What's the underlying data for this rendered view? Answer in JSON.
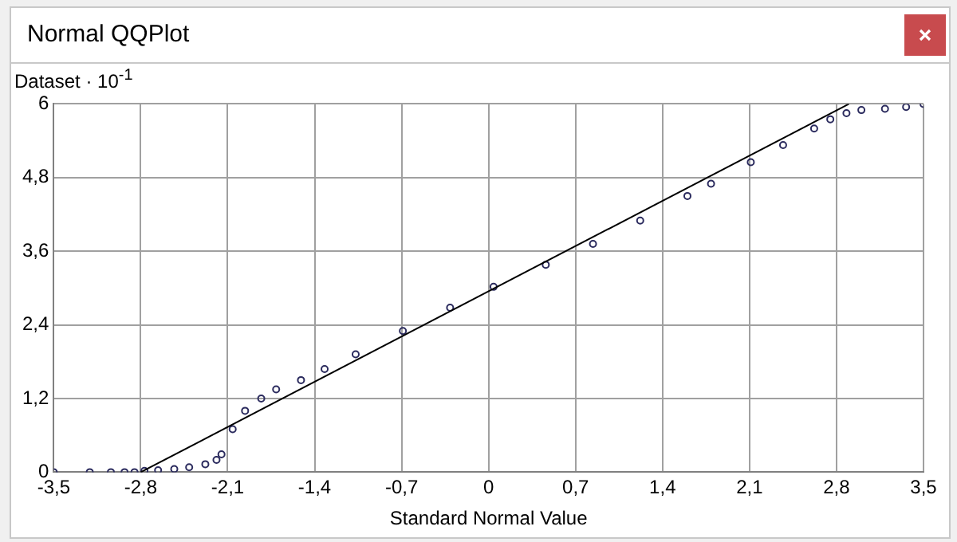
{
  "chart_data": {
    "type": "scatter",
    "title": "Normal QQPlot",
    "xlabel": "Standard Normal Value",
    "ylabel": "Dataset · 10$^{-1}$",
    "series": [
      {
        "type": "scatter",
        "color": "#2b2b5e",
        "marker": "circle",
        "x": [
          -3.5,
          -3.21,
          -3.04,
          -2.93,
          -2.85,
          -2.77,
          -2.66,
          -2.53,
          -2.41,
          -2.28,
          -2.19,
          -2.15,
          -2.06,
          -1.96,
          -1.83,
          -1.71,
          -1.51,
          -1.32,
          -1.07,
          -0.69,
          -0.31,
          0.04,
          0.46,
          0.84,
          1.22,
          1.6,
          1.79,
          2.11,
          2.37,
          2.62,
          2.75,
          2.88,
          3.0,
          3.19,
          3.36,
          3.5
        ],
        "values": [
          0,
          0,
          0,
          0,
          0,
          0.02,
          0.03,
          0.05,
          0.08,
          0.13,
          0.2,
          0.29,
          0.7,
          1.0,
          1.2,
          1.35,
          1.5,
          1.68,
          1.92,
          2.3,
          2.68,
          3.02,
          3.38,
          3.72,
          4.1,
          4.5,
          4.7,
          5.05,
          5.33,
          5.6,
          5.75,
          5.85,
          5.9,
          5.92,
          5.95,
          6.0
        ]
      },
      {
        "type": "line",
        "color": "#000000",
        "x": [
          -2.8,
          2.9
        ],
        "values": [
          0,
          6
        ]
      }
    ],
    "xlim": [
      -3.5,
      3.5
    ],
    "xticks": [
      {
        "value": -3.5,
        "label": "-3,5"
      },
      {
        "value": -2.8,
        "label": "-2,8"
      },
      {
        "value": -2.1,
        "label": "-2,1"
      },
      {
        "value": -1.4,
        "label": "-1,4"
      },
      {
        "value": -0.7,
        "label": "-0,7"
      },
      0,
      {
        "value": 0.7,
        "label": "0,7"
      },
      {
        "value": 1.4,
        "label": "1,4"
      },
      {
        "value": 2.1,
        "label": "2,1"
      },
      {
        "value": 2.8,
        "label": "2,8"
      },
      {
        "value": 3.5,
        "label": "3,5"
      }
    ],
    "ylim": [
      0,
      6
    ],
    "yticks": [
      0,
      {
        "value": 1.2,
        "label": "1,2"
      },
      {
        "value": 2.4,
        "label": "2,4"
      },
      {
        "value": 3.6,
        "label": "3,6"
      },
      {
        "value": 4.8,
        "label": "4,8"
      },
      6
    ],
    "grid": true,
    "legend": false
  }
}
